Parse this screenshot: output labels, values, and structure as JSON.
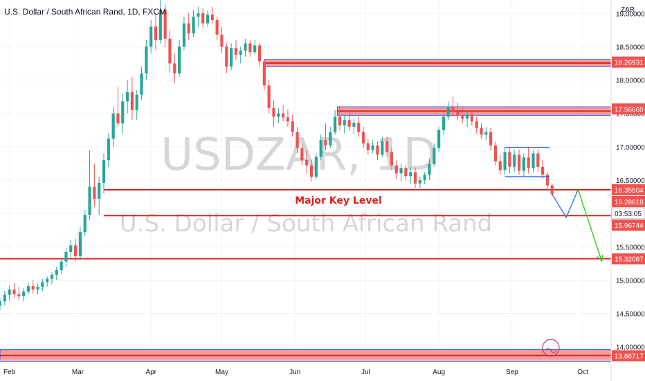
{
  "header": {
    "symbol_title": "U.S. Dollar / South African Rand, 1D, FXCM",
    "currency": "ZAR"
  },
  "watermark": {
    "ticker": "USDZAR, 1D",
    "name": "U.S. Dollar / South African Rand"
  },
  "annotation": {
    "key_level_label": "Major Key Level"
  },
  "colors": {
    "up": "#26a69a",
    "down": "#ef5350",
    "level_line": "#e01e1e",
    "zone_fill": "#f28b8b",
    "zone_border": "#2962ff",
    "projection_down": "#3c7ee0",
    "projection_up": "#3bd11b"
  },
  "chart_data": {
    "type": "candlestick",
    "title": "U.S. Dollar / South African Rand, 1D, FXCM",
    "xlabel": "",
    "ylabel": "",
    "x_tick_labels": [
      "Feb",
      "Mar",
      "Apr",
      "May",
      "Jun",
      "Jul",
      "Aug",
      "Sep",
      "Oct"
    ],
    "x_tick_dates": [
      "2020-02-01",
      "2020-03-01",
      "2020-04-01",
      "2020-05-01",
      "2020-06-01",
      "2020-07-01",
      "2020-08-01",
      "2020-09-01",
      "2020-10-01"
    ],
    "y_tick_labels": [
      "14.00000",
      "14.50000",
      "15.00000",
      "15.50000",
      "16.00000",
      "16.50000",
      "17.00000",
      "17.50000",
      "18.00000",
      "18.50000",
      "19.00000"
    ],
    "ylim": [
      13.8,
      19.2
    ],
    "xlim": [
      "2020-01-28",
      "2020-10-13"
    ],
    "grid": true,
    "price_labels": [
      {
        "value": 18.26931,
        "text": "18.26931",
        "color": "#ef5350"
      },
      {
        "value": 17.5666,
        "text": "17.56660",
        "color": "#ef5350"
      },
      {
        "value": 16.35504,
        "text": "16.35504",
        "color": "#ef5350"
      },
      {
        "value": 16.28618,
        "text": "16.28618",
        "color": "#ef5350"
      },
      {
        "value": 15.96744,
        "text": "15.96744",
        "color": "#ef5350"
      },
      {
        "value": 15.32087,
        "text": "15.32087",
        "color": "#ef5350"
      },
      {
        "value": 13.86717,
        "text": "13.86717",
        "color": "#ef5350"
      }
    ],
    "countdown_label": "03:53:05",
    "zones": [
      {
        "from": "2020-05-19",
        "to": "2020-10-13",
        "top": 18.31,
        "bottom": 18.2
      },
      {
        "from": "2020-06-19",
        "to": "2020-10-13",
        "top": 17.6,
        "bottom": 17.47
      },
      {
        "from": "2020-01-28",
        "to": "2020-10-13",
        "top": 13.96,
        "bottom": 13.78
      }
    ],
    "horizontal_levels": [
      {
        "value": 16.35504,
        "from": "2020-03-12"
      },
      {
        "value": 15.96744,
        "from": "2020-03-12"
      },
      {
        "value": 15.32087,
        "from": "2020-01-28"
      }
    ],
    "range_box": {
      "from": "2020-08-29",
      "to": "2020-09-17",
      "top": 16.99,
      "bottom": 16.55
    },
    "projection": {
      "down": [
        [
          "2020-09-18",
          16.29
        ],
        [
          "2020-09-24",
          15.94
        ],
        [
          "2020-09-29",
          16.36
        ]
      ],
      "up": [
        [
          "2020-09-29",
          16.36
        ],
        [
          "2020-10-09",
          15.29
        ]
      ]
    },
    "ohlc": [
      [
        "2020-01-28",
        14.62,
        14.73,
        14.55,
        14.68
      ],
      [
        "2020-01-30",
        14.68,
        14.84,
        14.62,
        14.78
      ],
      [
        "2020-02-01",
        14.78,
        14.92,
        14.7,
        14.86
      ],
      [
        "2020-02-03",
        14.86,
        14.95,
        14.74,
        14.79
      ],
      [
        "2020-02-05",
        14.79,
        14.9,
        14.7,
        14.76
      ],
      [
        "2020-02-07",
        14.76,
        14.88,
        14.68,
        14.83
      ],
      [
        "2020-02-09",
        14.83,
        14.96,
        14.78,
        14.91
      ],
      [
        "2020-02-11",
        14.91,
        15.0,
        14.8,
        14.86
      ],
      [
        "2020-02-13",
        14.86,
        14.95,
        14.78,
        14.9
      ],
      [
        "2020-02-15",
        14.9,
        15.02,
        14.84,
        14.97
      ],
      [
        "2020-02-17",
        14.97,
        15.06,
        14.9,
        15.02
      ],
      [
        "2020-02-19",
        15.02,
        15.12,
        14.94,
        15.08
      ],
      [
        "2020-02-21",
        15.08,
        15.2,
        15.0,
        15.15
      ],
      [
        "2020-02-23",
        15.15,
        15.32,
        15.1,
        15.28
      ],
      [
        "2020-02-25",
        15.28,
        15.48,
        15.2,
        15.42
      ],
      [
        "2020-02-27",
        15.42,
        15.6,
        15.34,
        15.52
      ],
      [
        "2020-02-29",
        15.52,
        15.62,
        15.28,
        15.36
      ],
      [
        "2020-03-02",
        15.36,
        15.8,
        15.3,
        15.72
      ],
      [
        "2020-03-04",
        15.72,
        16.05,
        15.66,
        15.98
      ],
      [
        "2020-03-06",
        15.98,
        16.95,
        15.9,
        16.4
      ],
      [
        "2020-03-08",
        16.4,
        16.75,
        16.1,
        16.22
      ],
      [
        "2020-03-10",
        16.22,
        16.55,
        15.98,
        16.46
      ],
      [
        "2020-03-12",
        16.46,
        16.9,
        16.3,
        16.8
      ],
      [
        "2020-03-14",
        16.8,
        17.2,
        16.7,
        17.12
      ],
      [
        "2020-03-16",
        17.12,
        17.6,
        17.0,
        17.5
      ],
      [
        "2020-03-18",
        17.5,
        17.9,
        17.3,
        17.35
      ],
      [
        "2020-03-20",
        17.35,
        17.8,
        17.2,
        17.68
      ],
      [
        "2020-03-22",
        17.68,
        18.0,
        17.5,
        17.82
      ],
      [
        "2020-03-24",
        17.82,
        18.05,
        17.4,
        17.55
      ],
      [
        "2020-03-26",
        17.55,
        17.85,
        17.4,
        17.78
      ],
      [
        "2020-03-28",
        17.78,
        18.2,
        17.7,
        18.1
      ],
      [
        "2020-03-30",
        18.1,
        18.6,
        18.0,
        18.5
      ],
      [
        "2020-04-01",
        18.5,
        18.9,
        18.4,
        18.8
      ],
      [
        "2020-04-03",
        18.8,
        19.0,
        18.45,
        18.6
      ],
      [
        "2020-04-05",
        18.6,
        19.2,
        18.55,
        19.05
      ],
      [
        "2020-04-07",
        19.05,
        19.15,
        18.5,
        18.62
      ],
      [
        "2020-04-09",
        18.62,
        18.75,
        18.1,
        18.25
      ],
      [
        "2020-04-11",
        18.25,
        18.4,
        17.95,
        18.1
      ],
      [
        "2020-04-13",
        18.1,
        18.6,
        18.05,
        18.5
      ],
      [
        "2020-04-15",
        18.5,
        18.95,
        18.45,
        18.85
      ],
      [
        "2020-04-17",
        18.85,
        19.0,
        18.6,
        18.7
      ],
      [
        "2020-04-19",
        18.7,
        19.05,
        18.65,
        18.95
      ],
      [
        "2020-04-21",
        18.95,
        19.1,
        18.8,
        19.0
      ],
      [
        "2020-04-23",
        19.0,
        19.08,
        18.78,
        18.85
      ],
      [
        "2020-04-25",
        18.85,
        19.05,
        18.8,
        18.98
      ],
      [
        "2020-04-27",
        18.98,
        19.1,
        18.85,
        18.9
      ],
      [
        "2020-04-29",
        18.9,
        18.95,
        18.6,
        18.68
      ],
      [
        "2020-05-01",
        18.68,
        18.8,
        18.4,
        18.5
      ],
      [
        "2020-05-03",
        18.5,
        18.55,
        18.1,
        18.2
      ],
      [
        "2020-05-05",
        18.2,
        18.55,
        18.15,
        18.48
      ],
      [
        "2020-05-07",
        18.48,
        18.6,
        18.3,
        18.38
      ],
      [
        "2020-05-09",
        18.38,
        18.5,
        18.25,
        18.44
      ],
      [
        "2020-05-11",
        18.44,
        18.62,
        18.35,
        18.55
      ],
      [
        "2020-05-13",
        18.55,
        18.6,
        18.35,
        18.42
      ],
      [
        "2020-05-15",
        18.42,
        18.6,
        18.38,
        18.52
      ],
      [
        "2020-05-17",
        18.52,
        18.56,
        18.2,
        18.28
      ],
      [
        "2020-05-19",
        18.28,
        18.32,
        17.85,
        17.92
      ],
      [
        "2020-05-21",
        17.92,
        18.0,
        17.5,
        17.58
      ],
      [
        "2020-05-23",
        17.58,
        17.7,
        17.3,
        17.45
      ],
      [
        "2020-05-25",
        17.45,
        17.58,
        17.35,
        17.5
      ],
      [
        "2020-05-27",
        17.5,
        17.62,
        17.38,
        17.44
      ],
      [
        "2020-05-29",
        17.44,
        17.56,
        17.3,
        17.38
      ],
      [
        "2020-05-31",
        17.38,
        17.48,
        17.15,
        17.22
      ],
      [
        "2020-06-02",
        17.22,
        17.3,
        16.9,
        16.98
      ],
      [
        "2020-06-04",
        16.98,
        17.05,
        16.72,
        16.8
      ],
      [
        "2020-06-06",
        16.8,
        16.95,
        16.6,
        16.72
      ],
      [
        "2020-06-08",
        16.72,
        16.8,
        16.48,
        16.55
      ],
      [
        "2020-06-10",
        16.55,
        16.9,
        16.52,
        16.85
      ],
      [
        "2020-06-12",
        16.85,
        17.18,
        16.8,
        17.1
      ],
      [
        "2020-06-14",
        17.1,
        17.35,
        16.95,
        17.02
      ],
      [
        "2020-06-16",
        17.02,
        17.3,
        16.98,
        17.22
      ],
      [
        "2020-06-18",
        17.22,
        17.55,
        17.18,
        17.45
      ],
      [
        "2020-06-20",
        17.45,
        17.6,
        17.25,
        17.32
      ],
      [
        "2020-06-22",
        17.32,
        17.48,
        17.2,
        17.4
      ],
      [
        "2020-06-24",
        17.4,
        17.52,
        17.24,
        17.3
      ],
      [
        "2020-06-26",
        17.3,
        17.42,
        17.18,
        17.36
      ],
      [
        "2020-06-28",
        17.36,
        17.45,
        17.15,
        17.22
      ],
      [
        "2020-06-30",
        17.22,
        17.3,
        16.98,
        17.05
      ],
      [
        "2020-07-02",
        17.05,
        17.12,
        16.88,
        16.95
      ],
      [
        "2020-07-04",
        16.95,
        17.1,
        16.9,
        17.02
      ],
      [
        "2020-07-06",
        17.02,
        17.08,
        16.8,
        16.88
      ],
      [
        "2020-07-08",
        16.88,
        17.15,
        16.84,
        17.08
      ],
      [
        "2020-07-10",
        17.08,
        17.15,
        16.85,
        16.92
      ],
      [
        "2020-07-12",
        16.92,
        16.98,
        16.65,
        16.72
      ],
      [
        "2020-07-14",
        16.72,
        16.8,
        16.52,
        16.6
      ],
      [
        "2020-07-16",
        16.6,
        16.75,
        16.48,
        16.68
      ],
      [
        "2020-07-18",
        16.68,
        16.72,
        16.5,
        16.56
      ],
      [
        "2020-07-20",
        16.56,
        16.7,
        16.45,
        16.62
      ],
      [
        "2020-07-22",
        16.62,
        16.68,
        16.38,
        16.45
      ],
      [
        "2020-07-24",
        16.45,
        16.55,
        16.38,
        16.5
      ],
      [
        "2020-07-26",
        16.5,
        16.62,
        16.44,
        16.58
      ],
      [
        "2020-07-28",
        16.58,
        16.82,
        16.5,
        16.74
      ],
      [
        "2020-07-30",
        16.74,
        17.05,
        16.7,
        16.98
      ],
      [
        "2020-08-01",
        16.98,
        17.3,
        16.92,
        17.25
      ],
      [
        "2020-08-03",
        17.25,
        17.5,
        17.18,
        17.45
      ],
      [
        "2020-08-05",
        17.45,
        17.68,
        17.4,
        17.6
      ],
      [
        "2020-08-07",
        17.6,
        17.75,
        17.45,
        17.52
      ],
      [
        "2020-08-09",
        17.52,
        17.66,
        17.4,
        17.46
      ],
      [
        "2020-08-11",
        17.46,
        17.58,
        17.35,
        17.42
      ],
      [
        "2020-08-13",
        17.42,
        17.52,
        17.3,
        17.48
      ],
      [
        "2020-08-15",
        17.48,
        17.55,
        17.32,
        17.38
      ],
      [
        "2020-08-17",
        17.38,
        17.45,
        17.2,
        17.28
      ],
      [
        "2020-08-19",
        17.28,
        17.35,
        17.12,
        17.18
      ],
      [
        "2020-08-21",
        17.18,
        17.3,
        17.1,
        17.22
      ],
      [
        "2020-08-23",
        17.22,
        17.28,
        16.95,
        17.02
      ],
      [
        "2020-08-25",
        17.02,
        17.08,
        16.72,
        16.78
      ],
      [
        "2020-08-27",
        16.78,
        16.88,
        16.58,
        16.65
      ],
      [
        "2020-08-29",
        16.65,
        16.99,
        16.58,
        16.92
      ],
      [
        "2020-08-31",
        16.92,
        16.98,
        16.6,
        16.7
      ],
      [
        "2020-09-02",
        16.7,
        16.95,
        16.62,
        16.88
      ],
      [
        "2020-09-04",
        16.88,
        16.96,
        16.58,
        16.64
      ],
      [
        "2020-09-06",
        16.64,
        16.9,
        16.56,
        16.84
      ],
      [
        "2020-09-08",
        16.84,
        16.98,
        16.6,
        16.68
      ],
      [
        "2020-09-10",
        16.68,
        16.95,
        16.62,
        16.9
      ],
      [
        "2020-09-12",
        16.9,
        16.96,
        16.62,
        16.7
      ],
      [
        "2020-09-14",
        16.7,
        16.8,
        16.52,
        16.58
      ],
      [
        "2020-09-16",
        16.58,
        16.62,
        16.35,
        16.42
      ],
      [
        "2020-09-18",
        16.42,
        16.45,
        16.26,
        16.29
      ]
    ]
  }
}
